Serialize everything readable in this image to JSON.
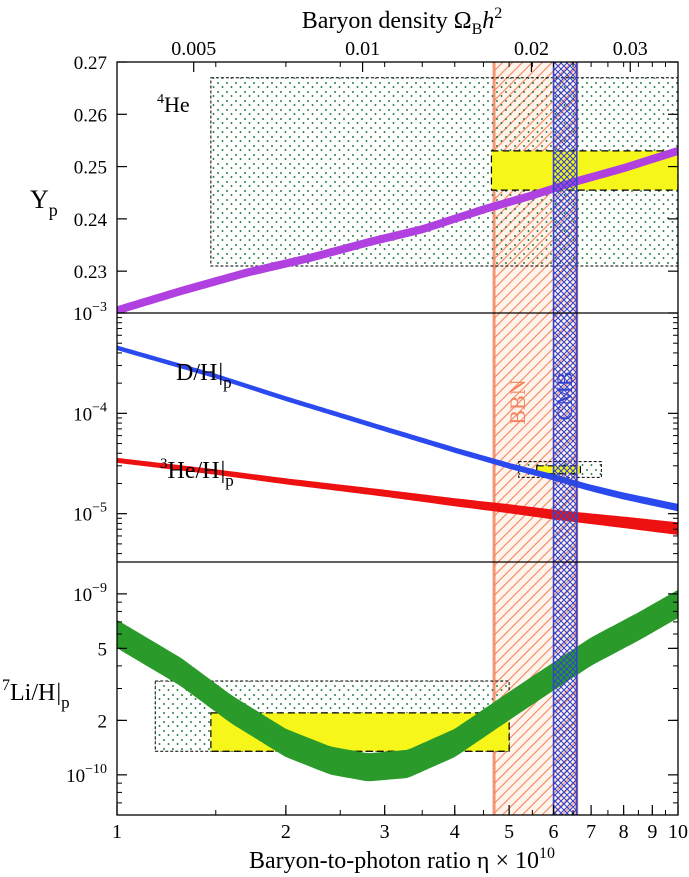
{
  "chart_data": {
    "type": "line",
    "x_axis": {
      "label": "Baryon-to-photon ratio η × 10^10",
      "label_main": "Baryon-to-photon ratio η × 10",
      "label_exp": "10",
      "scale": "log",
      "range": [
        1,
        10
      ],
      "ticks": [
        1,
        2,
        3,
        4,
        5,
        6,
        7,
        8,
        9,
        10
      ],
      "tick_labels": [
        "1",
        "2",
        "3",
        "4",
        "5",
        "6",
        "7",
        "8",
        "9",
        "10"
      ]
    },
    "top_axis": {
      "label": "Baryon density Ω_B h^2",
      "label_main": "Baryon density Ω",
      "label_sub": "B",
      "label_h": "h",
      "label_exp": "2",
      "ticks": [
        0.005,
        0.01,
        0.02,
        0.03
      ],
      "tick_labels": [
        "0.005",
        "0.01",
        "0.02",
        "0.03"
      ],
      "eta_positions": [
        1.37,
        2.74,
        5.48,
        8.22
      ]
    },
    "bands": {
      "bbn": {
        "label": "BBN",
        "range": [
          4.7,
          6.6
        ],
        "color": "#f4845f"
      },
      "cmb": {
        "label": "CMB",
        "range": [
          6.0,
          6.6
        ],
        "color": "#3344cc"
      }
    },
    "panels": [
      {
        "id": "helium",
        "ylabel": "Y",
        "ylabel_sub": "p",
        "species_label": "He",
        "species_sup": "4",
        "scale": "linear",
        "ylim": [
          0.222,
          0.27
        ],
        "ticks": [
          0.23,
          0.24,
          0.25,
          0.26,
          0.27
        ],
        "tick_labels": [
          "0.23",
          "0.24",
          "0.25",
          "0.26",
          "0.27"
        ],
        "series": [
          {
            "id": "Yp",
            "color": "#b040e0",
            "x": [
              1.0,
              1.3,
              1.7,
              2.2,
              2.8,
              3.5,
              4.5,
              5.5,
              6.5,
              8.0,
              10.0
            ],
            "y": [
              0.2225,
              0.2262,
              0.2297,
              0.2325,
              0.2355,
              0.238,
              0.2418,
              0.2445,
              0.247,
              0.2497,
              0.253
            ],
            "width": [
              0.0007,
              0.0007,
              0.0007,
              0.0007,
              0.0007,
              0.0007,
              0.0007,
              0.0007,
              0.0007,
              0.0007,
              0.0007
            ]
          }
        ],
        "obs_boxes": [
          {
            "kind": "dotted",
            "x": [
              1.47,
              10.0
            ],
            "y": [
              0.231,
              0.267
            ]
          },
          {
            "kind": "yellow",
            "x": [
              4.65,
              10.0
            ],
            "y": [
              0.2455,
              0.253
            ]
          }
        ]
      },
      {
        "id": "dh",
        "ylabel": "",
        "scale": "log",
        "ylim": [
          3.3e-06,
          0.001
        ],
        "ticks": [
          1e-05,
          0.0001,
          0.001
        ],
        "tick_labels": [
          "10",
          "10",
          "10"
        ],
        "tick_exps": [
          "−5",
          "−4",
          "−3"
        ],
        "series": [
          {
            "id": "DH",
            "color": "#2a4af0",
            "label": "D/H",
            "label_sub": "p",
            "x": [
              1.0,
              1.5,
              2.0,
              3.0,
              4.0,
              5.0,
              6.0,
              7.0,
              8.0,
              10.0
            ],
            "y": [
              0.00045,
              0.000235,
              0.00014,
              7e-05,
              4.3e-05,
              3e-05,
              2.3e-05,
              1.8e-05,
              1.5e-05,
              1.15e-05
            ],
            "wdec": [
              0.018,
              0.018,
              0.019,
              0.02,
              0.022,
              0.024,
              0.026,
              0.028,
              0.03,
              0.032
            ]
          },
          {
            "id": "He3H",
            "color": "#ee1111",
            "label": "He/H",
            "label_sup": "3",
            "label_sub": "p",
            "x": [
              1.0,
              1.5,
              2.0,
              3.0,
              4.0,
              5.0,
              6.0,
              7.0,
              8.0,
              10.0
            ],
            "y": [
              3.4e-05,
              2.6e-05,
              2.1e-05,
              1.6e-05,
              1.3e-05,
              1.12e-05,
              9.8e-06,
              8.9e-06,
              8.2e-06,
              7.1e-06
            ],
            "wdec": [
              0.02,
              0.022,
              0.025,
              0.03,
              0.035,
              0.04,
              0.044,
              0.048,
              0.052,
              0.058
            ]
          }
        ],
        "obs_boxes": [
          {
            "kind": "dotted",
            "x": [
              5.2,
              7.3
            ],
            "y": [
              2.3e-05,
              3.3e-05
            ]
          },
          {
            "kind": "yellow",
            "x": [
              5.6,
              6.7
            ],
            "y": [
              2.5e-05,
              3e-05
            ]
          }
        ]
      },
      {
        "id": "lithium",
        "ylabel": "Li/H",
        "ylabel_sup": "7",
        "ylabel_sub": "p",
        "scale": "log",
        "ylim": [
          6e-11,
          1.5e-09
        ],
        "ticks": [
          1e-10,
          2e-10,
          5e-10,
          1e-09
        ],
        "tick_labels": [
          "10",
          "2",
          "5",
          "10"
        ],
        "tick_exps": [
          "−10",
          "",
          "",
          "−9"
        ],
        "series": [
          {
            "id": "Li7",
            "color": "#2a9a2a",
            "x": [
              1.0,
              1.3,
              1.6,
              2.0,
              2.4,
              2.8,
              3.3,
              4.0,
              5.0,
              6.0,
              7.0,
              8.5,
              10.0
            ],
            "y": [
              6e-10,
              3.7e-10,
              2.3e-10,
              1.5e-10,
              1.2e-10,
              1.1e-10,
              1.15e-10,
              1.5e-10,
              2.4e-10,
              3.5e-10,
              4.8e-10,
              6.6e-10,
              8.8e-10
            ],
            "wdec": [
              0.075,
              0.075,
              0.075,
              0.075,
              0.075,
              0.075,
              0.075,
              0.075,
              0.075,
              0.075,
              0.075,
              0.075,
              0.075
            ]
          }
        ],
        "obs_boxes": [
          {
            "kind": "dotted",
            "x": [
              1.17,
              5.0
            ],
            "y": [
              1.35e-10,
              3.3e-10
            ]
          },
          {
            "kind": "yellow",
            "x": [
              1.47,
              5.0
            ],
            "y": [
              1.35e-10,
              2.2e-10
            ]
          }
        ]
      }
    ],
    "colors": {
      "obs_dots": "#1f7a3a",
      "yellow": "#f6f61a",
      "axes": "#000000"
    }
  }
}
